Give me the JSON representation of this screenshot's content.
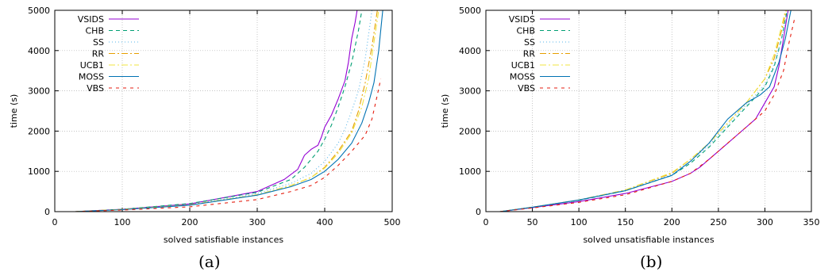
{
  "chart_data": [
    {
      "type": "line",
      "caption": "(a)",
      "xlabel": "solved satisfiable instances",
      "ylabel": "time (s)",
      "xlim": [
        0,
        500
      ],
      "ylim": [
        0,
        5000
      ],
      "xticks": [
        0,
        100,
        200,
        300,
        400,
        500
      ],
      "yticks": [
        0,
        1000,
        2000,
        3000,
        4000,
        5000
      ],
      "grid": true,
      "legend_position": "top-left",
      "series": [
        {
          "name": "VSIDS",
          "color": "#9400d3",
          "dash": "solid",
          "x": [
            30,
            100,
            200,
            300,
            340,
            360,
            370,
            380,
            390,
            395,
            400,
            410,
            420,
            430,
            435,
            440,
            445,
            448
          ],
          "y": [
            0,
            60,
            190,
            500,
            800,
            1050,
            1400,
            1550,
            1650,
            1850,
            2100,
            2400,
            2800,
            3250,
            3700,
            4300,
            4700,
            5000
          ]
        },
        {
          "name": "CHB",
          "color": "#009e73",
          "dash": "5,4",
          "x": [
            30,
            100,
            200,
            300,
            350,
            370,
            390,
            400,
            410,
            420,
            430,
            440,
            450,
            455
          ],
          "y": [
            0,
            60,
            200,
            480,
            800,
            1100,
            1500,
            1800,
            2150,
            2600,
            3100,
            3700,
            4500,
            5000
          ]
        },
        {
          "name": "SS",
          "color": "#56b4e9",
          "dash": "1,3",
          "x": [
            30,
            100,
            200,
            300,
            350,
            380,
            400,
            420,
            430,
            440,
            450,
            460,
            470
          ],
          "y": [
            0,
            55,
            170,
            450,
            700,
            950,
            1250,
            1700,
            2050,
            2500,
            3000,
            3800,
            5000
          ]
        },
        {
          "name": "RR",
          "color": "#e69f00",
          "dash": "8,3,2,3",
          "x": [
            30,
            100,
            200,
            300,
            350,
            380,
            400,
            420,
            440,
            450,
            460,
            470,
            478
          ],
          "y": [
            0,
            55,
            170,
            420,
            650,
            850,
            1100,
            1500,
            2000,
            2500,
            3200,
            4100,
            5000
          ]
        },
        {
          "name": "UCB1",
          "color": "#f0e442",
          "dash": "8,3,2,3",
          "x": [
            30,
            100,
            200,
            300,
            350,
            380,
            400,
            420,
            440,
            455,
            465,
            473,
            480
          ],
          "y": [
            0,
            55,
            165,
            420,
            650,
            850,
            1080,
            1450,
            1950,
            2600,
            3300,
            4200,
            5000
          ]
        },
        {
          "name": "MOSS",
          "color": "#0072b2",
          "dash": "solid",
          "x": [
            30,
            100,
            200,
            300,
            350,
            380,
            400,
            420,
            440,
            455,
            465,
            473,
            480,
            486
          ],
          "y": [
            0,
            50,
            160,
            410,
            620,
            800,
            1000,
            1300,
            1700,
            2200,
            2700,
            3200,
            4000,
            5000
          ]
        },
        {
          "name": "VBS",
          "color": "#e51e10",
          "dash": "4,5",
          "x": [
            30,
            100,
            200,
            300,
            350,
            380,
            400,
            420,
            440,
            460,
            470,
            478,
            483
          ],
          "y": [
            0,
            40,
            120,
            300,
            500,
            650,
            850,
            1150,
            1500,
            1900,
            2300,
            2900,
            3300
          ]
        }
      ]
    },
    {
      "type": "line",
      "caption": "(b)",
      "xlabel": "solved unsatisfiable instances",
      "ylabel": "time (s)",
      "xlim": [
        0,
        350
      ],
      "ylim": [
        0,
        5000
      ],
      "xticks": [
        0,
        50,
        100,
        150,
        200,
        250,
        300,
        350
      ],
      "yticks": [
        0,
        1000,
        2000,
        3000,
        4000,
        5000
      ],
      "grid": true,
      "legend_position": "top-left",
      "series": [
        {
          "name": "VSIDS",
          "color": "#9400d3",
          "dash": "solid",
          "x": [
            15,
            50,
            100,
            150,
            200,
            220,
            230,
            250,
            270,
            290,
            300,
            310,
            315,
            320,
            325
          ],
          "y": [
            0,
            100,
            250,
            450,
            750,
            950,
            1100,
            1500,
            1900,
            2300,
            2700,
            3100,
            3600,
            4300,
            5000
          ]
        },
        {
          "name": "CHB",
          "color": "#009e73",
          "dash": "5,4",
          "x": [
            15,
            50,
            100,
            150,
            200,
            220,
            240,
            260,
            280,
            300,
            310,
            318,
            324
          ],
          "y": [
            0,
            110,
            280,
            520,
            900,
            1200,
            1600,
            2100,
            2600,
            3100,
            3600,
            4300,
            5000
          ]
        },
        {
          "name": "SS",
          "color": "#56b4e9",
          "dash": "1,3",
          "x": [
            15,
            50,
            100,
            150,
            200,
            220,
            240,
            260,
            280,
            300,
            310,
            318,
            325
          ],
          "y": [
            0,
            110,
            280,
            530,
            920,
            1250,
            1650,
            2150,
            2650,
            3150,
            3650,
            4300,
            5000
          ]
        },
        {
          "name": "RR",
          "color": "#e69f00",
          "dash": "8,3,2,3",
          "x": [
            15,
            50,
            100,
            150,
            200,
            220,
            240,
            260,
            280,
            300,
            310,
            318,
            323
          ],
          "y": [
            0,
            110,
            290,
            540,
            950,
            1300,
            1700,
            2200,
            2700,
            3300,
            3800,
            4500,
            5000
          ]
        },
        {
          "name": "UCB1",
          "color": "#f0e442",
          "dash": "8,3,2,3",
          "x": [
            15,
            50,
            100,
            150,
            200,
            220,
            240,
            260,
            280,
            300,
            310,
            318,
            322
          ],
          "y": [
            0,
            110,
            290,
            540,
            970,
            1300,
            1700,
            2200,
            2700,
            3300,
            3900,
            4600,
            5000
          ]
        },
        {
          "name": "MOSS",
          "color": "#0072b2",
          "dash": "solid",
          "x": [
            15,
            50,
            100,
            150,
            200,
            220,
            240,
            260,
            280,
            295,
            305,
            315,
            322,
            328
          ],
          "y": [
            0,
            110,
            290,
            520,
            900,
            1250,
            1700,
            2300,
            2700,
            2900,
            3100,
            3700,
            4300,
            5000
          ]
        },
        {
          "name": "VBS",
          "color": "#e51e10",
          "dash": "4,5",
          "x": [
            15,
            50,
            100,
            150,
            200,
            220,
            240,
            260,
            280,
            300,
            310,
            320,
            326,
            332
          ],
          "y": [
            0,
            90,
            230,
            420,
            750,
            950,
            1300,
            1700,
            2100,
            2500,
            2900,
            3500,
            4200,
            4800
          ]
        }
      ]
    }
  ]
}
